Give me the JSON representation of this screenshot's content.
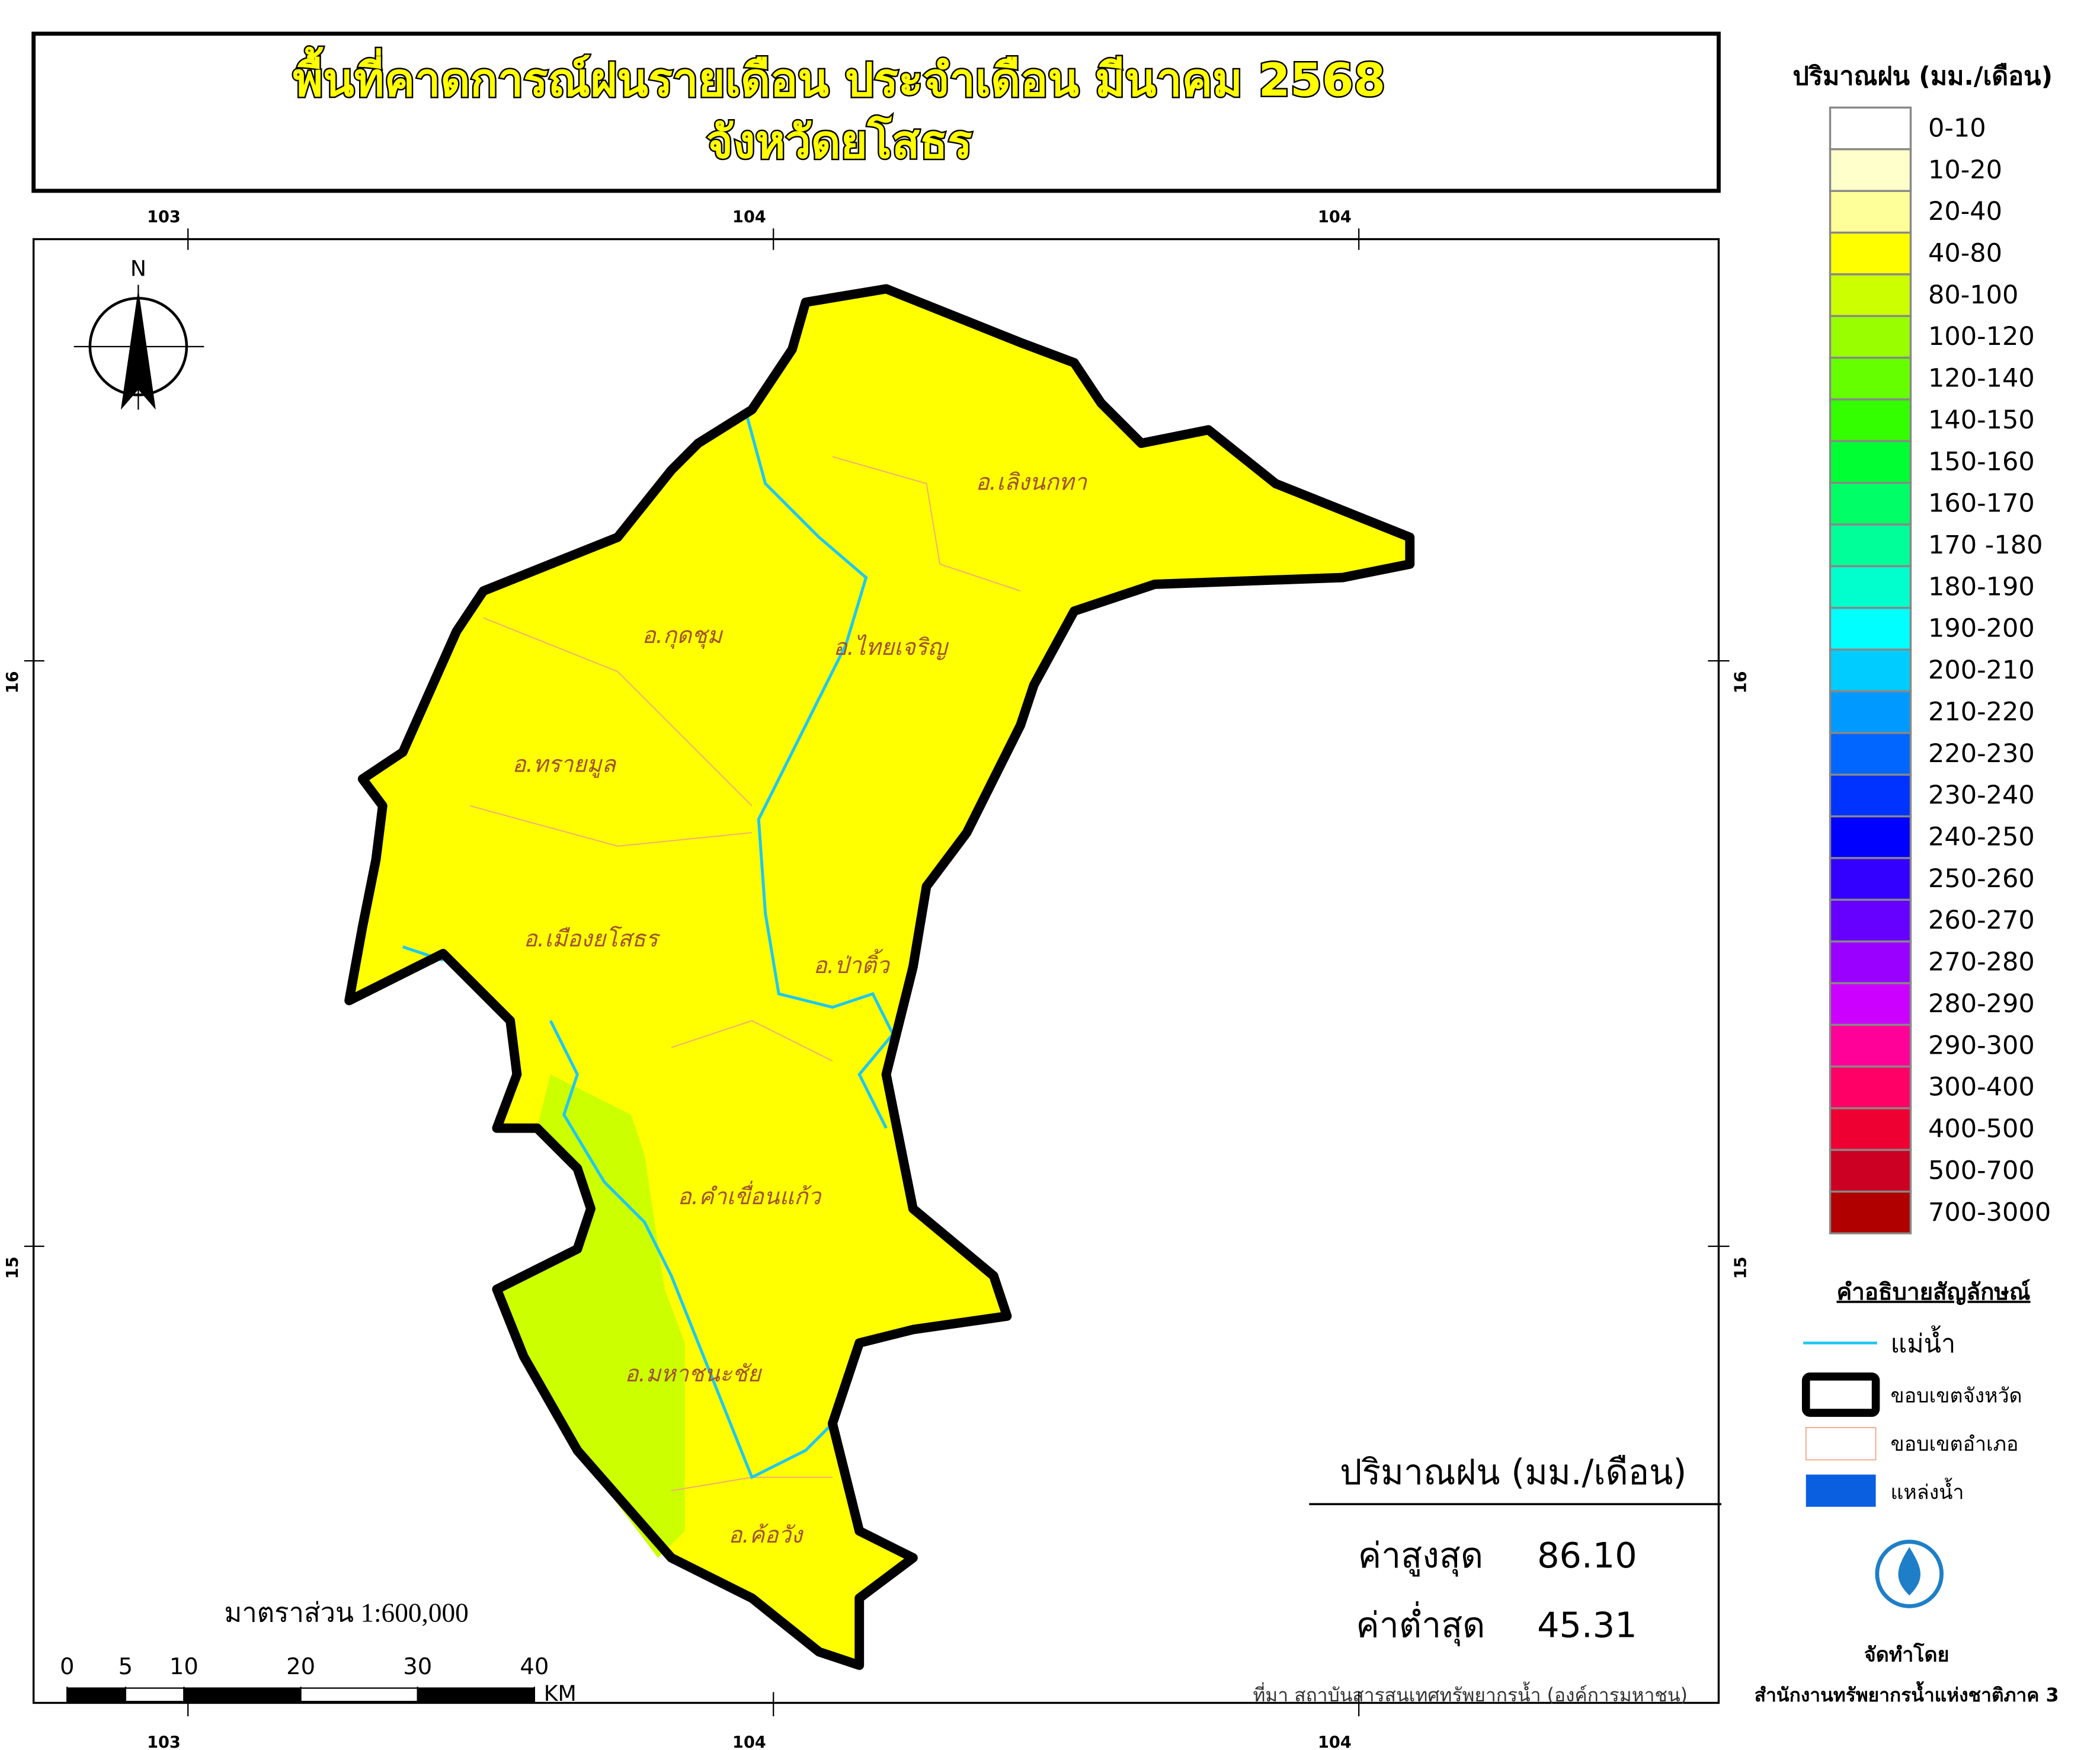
{
  "title": {
    "line1": "พื้นที่คาดการณ์ฝนรายเดือน ประจำเดือน มีนาคม 2568",
    "line2": "จังหวัดยโสธร"
  },
  "coordinates": {
    "top": [
      "103",
      "104",
      "104"
    ],
    "bottom": [
      "103",
      "104",
      "104"
    ],
    "left": [
      "16",
      "15"
    ],
    "right": [
      "16",
      "15"
    ]
  },
  "north": "N",
  "districts": [
    "อ.เลิงนกทา",
    "อ.กุดชุม",
    "อ.ไทยเจริญ",
    "อ.ทรายมูล",
    "อ.เมืองยโสธร",
    "อ.ป่าติ้ว",
    "อ.คำเขื่อนแก้ว",
    "อ.มหาชนะชัย",
    "อ.ค้อวัง"
  ],
  "scale": {
    "text": "มาตราส่วน  1:600,000",
    "ticks": [
      0,
      5,
      10,
      20,
      30,
      40
    ],
    "unit": "KM"
  },
  "stats": {
    "title": "ปริมาณฝน (มม./เดือน)",
    "max_label": "ค่าสูงสุด",
    "max_value": "86.10",
    "min_label": "ค่าต่ำสุด",
    "min_value": "45.31"
  },
  "legend": {
    "title": "ปริมาณฝน (มม./เดือน)",
    "items": [
      {
        "label": "0-10",
        "color": "#ffffff"
      },
      {
        "label": "10-20",
        "color": "#ffffcc"
      },
      {
        "label": "20-40",
        "color": "#ffff99"
      },
      {
        "label": "40-80",
        "color": "#ffff00"
      },
      {
        "label": "80-100",
        "color": "#ccff00"
      },
      {
        "label": "100-120",
        "color": "#99ff00"
      },
      {
        "label": "120-140",
        "color": "#66ff00"
      },
      {
        "label": "140-150",
        "color": "#33ff00"
      },
      {
        "label": "150-160",
        "color": "#00ff33"
      },
      {
        "label": "160-170",
        "color": "#00ff66"
      },
      {
        "label": "170 -180",
        "color": "#00ff99"
      },
      {
        "label": "180-190",
        "color": "#00ffcc"
      },
      {
        "label": "190-200",
        "color": "#00ffff"
      },
      {
        "label": "200-210",
        "color": "#00ccff"
      },
      {
        "label": "210-220",
        "color": "#0099ff"
      },
      {
        "label": "220-230",
        "color": "#0066ff"
      },
      {
        "label": "230-240",
        "color": "#0033ff"
      },
      {
        "label": "240-250",
        "color": "#0000ff"
      },
      {
        "label": "250-260",
        "color": "#3300ff"
      },
      {
        "label": "260-270",
        "color": "#6600ff"
      },
      {
        "label": "270-280",
        "color": "#9900ff"
      },
      {
        "label": "280-290",
        "color": "#cc00ff"
      },
      {
        "label": "290-300",
        "color": "#ff0099"
      },
      {
        "label": "300-400",
        "color": "#ff0066"
      },
      {
        "label": "400-500",
        "color": "#ee0033"
      },
      {
        "label": "500-700",
        "color": "#cc0022"
      },
      {
        "label": "700-3000",
        "color": "#b00000"
      }
    ]
  },
  "symbols": {
    "title": "คำอธิบายสัญลักษณ์",
    "river": "แม่น้ำ",
    "province": "ขอบเขตจังหวัด",
    "district": "ขอบเขตอำเภอ",
    "water": "แหล่งน้ำ"
  },
  "source": "ที่มา  สถาบันสารสนเทศทรัพยากรน้ำ (องค์การมหาชน)",
  "credit": {
    "label": "จัดทำโดย",
    "org": "สำนักงานทรัพยากรน้ำแห่งชาติภาค 3"
  }
}
